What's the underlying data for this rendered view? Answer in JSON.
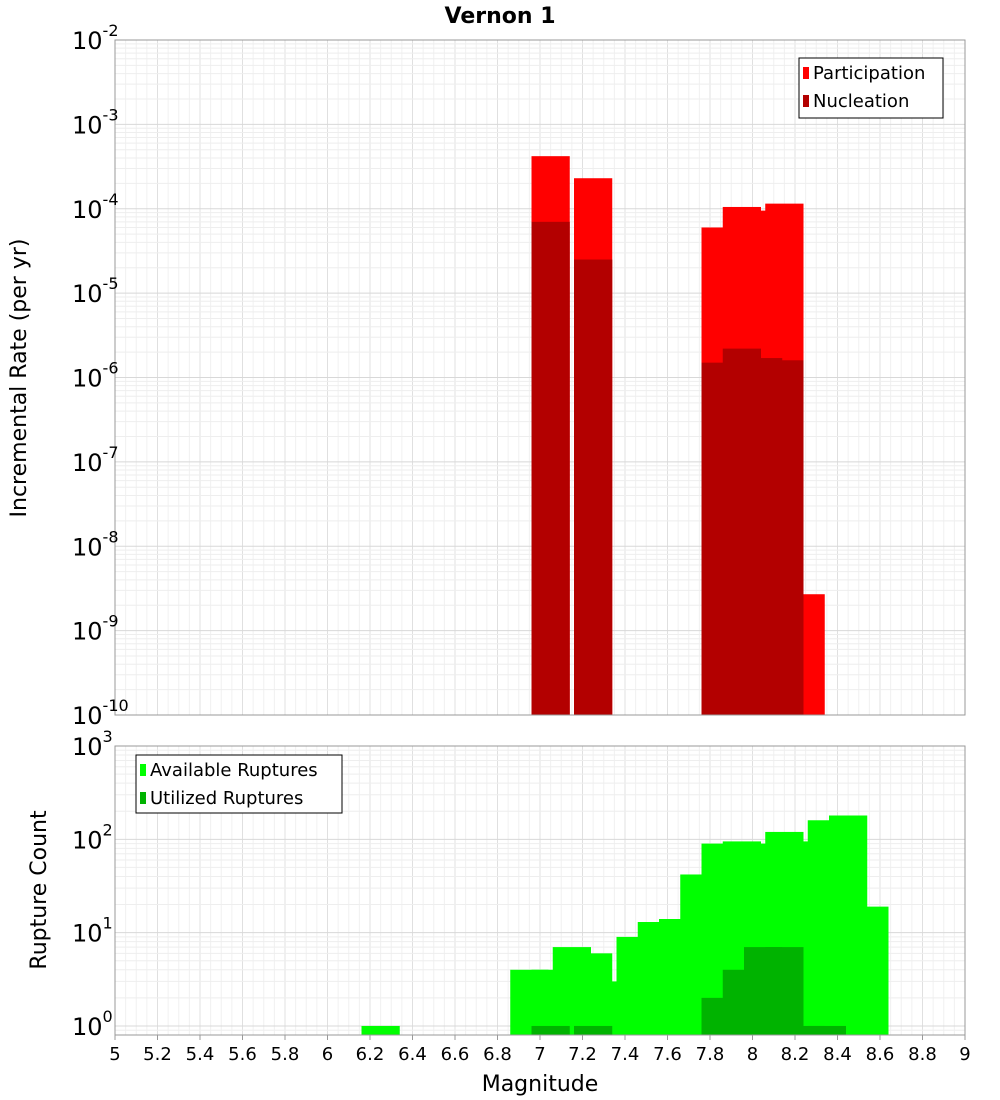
{
  "chart_data": [
    {
      "type": "bar",
      "title": "Vernon 1",
      "ylabel": "Incremental Rate (per yr)",
      "yscale": "log",
      "ylim": [
        1e-10,
        0.01
      ],
      "ytick_exponents": [
        "-10",
        "-9",
        "-8",
        "-7",
        "-6",
        "-5",
        "-4",
        "-3",
        "-2"
      ],
      "legend_placement": "top-right",
      "grid": true,
      "colors": {
        "Participation": "#ff0000",
        "Nucleation": "#b30000"
      },
      "series": [
        {
          "name": "Participation",
          "x": [
            7.05,
            7.25,
            7.85,
            7.95,
            8.05,
            8.15,
            8.25
          ],
          "values": [
            0.00042,
            0.00023,
            6e-05,
            0.000105,
            9.5e-05,
            0.000115,
            2.7e-09
          ]
        },
        {
          "name": "Nucleation",
          "x": [
            7.05,
            7.25,
            7.85,
            7.95,
            8.05,
            8.15
          ],
          "values": [
            7e-05,
            2.5e-05,
            1.5e-06,
            2.2e-06,
            1.7e-06,
            1.6e-06
          ]
        }
      ]
    },
    {
      "type": "bar",
      "xlabel": "Magnitude",
      "ylabel": "Rupture Count",
      "yscale": "log",
      "ylim": [
        0.8,
        1000
      ],
      "xlim": [
        5,
        9
      ],
      "ytick_exponents": [
        "0",
        "1",
        "2",
        "3"
      ],
      "xticks": [
        "5",
        "5.2",
        "5.4",
        "5.6",
        "5.8",
        "6",
        "6.2",
        "6.4",
        "6.6",
        "6.8",
        "7",
        "7.2",
        "7.4",
        "7.6",
        "7.8",
        "8",
        "8.2",
        "8.4",
        "8.6",
        "8.8",
        "9"
      ],
      "legend_placement": "top-left",
      "grid": true,
      "colors": {
        "Available Ruptures": "#00ff00",
        "Utilized Ruptures": "#00b300"
      },
      "series": [
        {
          "name": "Available Ruptures",
          "x": [
            6.25,
            6.95,
            7.05,
            7.15,
            7.25,
            7.35,
            7.45,
            7.55,
            7.65,
            7.75,
            7.85,
            7.95,
            8.05,
            8.15,
            8.25,
            8.35,
            8.45,
            8.55
          ],
          "values": [
            1,
            4,
            4,
            7,
            6,
            3,
            9,
            13,
            14,
            42,
            90,
            95,
            90,
            120,
            95,
            160,
            180,
            19
          ]
        },
        {
          "name": "Utilized Ruptures",
          "x": [
            7.05,
            7.25,
            7.85,
            7.95,
            8.05,
            8.15,
            8.25,
            8.35
          ],
          "values": [
            1,
            1,
            2,
            4,
            7,
            7,
            1,
            1
          ]
        }
      ]
    }
  ]
}
